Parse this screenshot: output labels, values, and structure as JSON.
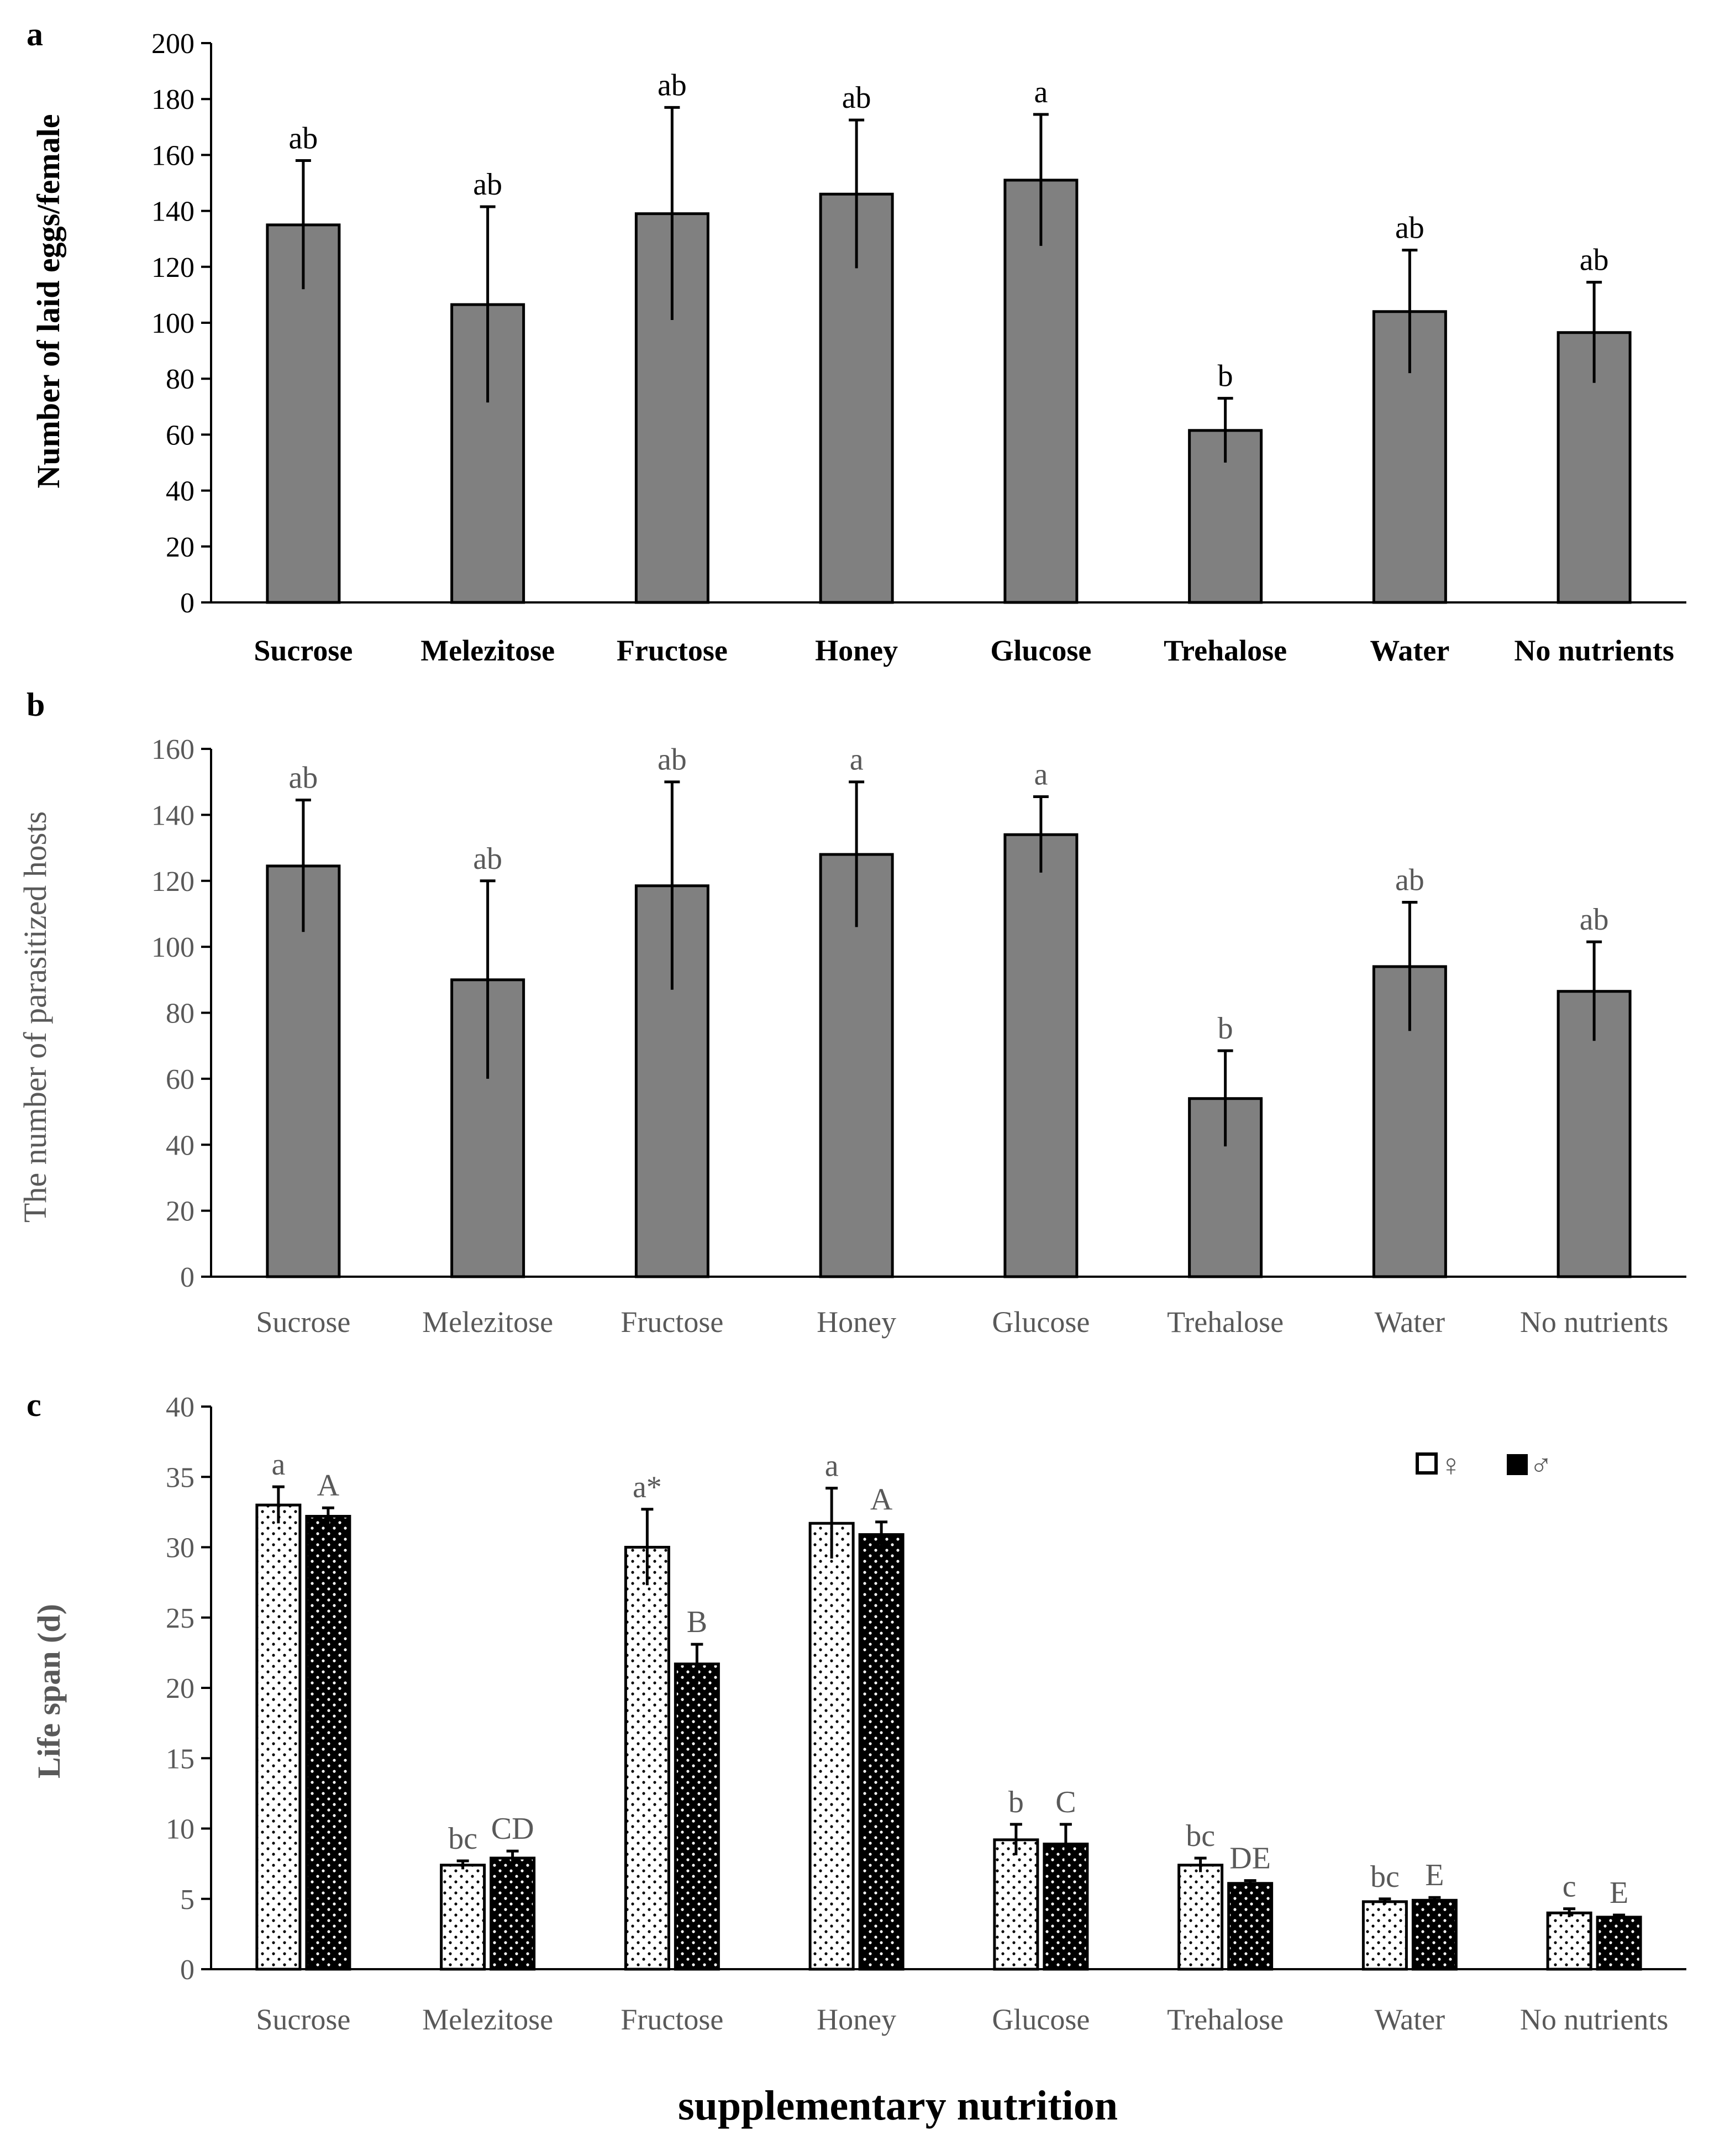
{
  "figure": {
    "xlabel": "supplementary nutrition",
    "colors": {
      "bar_fill": "#808080",
      "axis": "#000000",
      "text_dark": "#000000",
      "text_gray": "#595959",
      "female_fill": "#ffffff",
      "male_fill": "#000000"
    }
  },
  "chart_data": [
    {
      "panel": "a",
      "type": "bar",
      "ylabel": "Number of laid eggs/female",
      "ylim": [
        0,
        200
      ],
      "yticks": [
        0,
        20,
        40,
        60,
        80,
        100,
        120,
        140,
        160,
        180,
        200
      ],
      "categories": [
        "Sucrose",
        "Melezitose",
        "Fructose",
        "Honey",
        "Glucose",
        "Trehalose",
        "Water",
        "No nutrients"
      ],
      "values": [
        135,
        106.5,
        139,
        146,
        151,
        61.5,
        104,
        96.5
      ],
      "errors": [
        23,
        35,
        38,
        26.5,
        23.5,
        11.5,
        22,
        18
      ],
      "letters": [
        "ab",
        "ab",
        "ab",
        "ab",
        "a",
        "b",
        "ab",
        "ab"
      ]
    },
    {
      "panel": "b",
      "type": "bar",
      "ylabel": "The number of parasitized hosts",
      "ylim": [
        0,
        160
      ],
      "yticks": [
        0,
        20,
        40,
        60,
        80,
        100,
        120,
        140,
        160
      ],
      "categories": [
        "Sucrose",
        "Melezitose",
        "Fructose",
        "Honey",
        "Glucose",
        "Trehalose",
        "Water",
        "No nutrients"
      ],
      "values": [
        124.5,
        90,
        118.5,
        128,
        134,
        54,
        94,
        86.5
      ],
      "errors": [
        20,
        30,
        31.5,
        22,
        11.5,
        14.5,
        19.5,
        15
      ],
      "letters": [
        "ab",
        "ab",
        "ab",
        "a",
        "a",
        "b",
        "ab",
        "ab"
      ]
    },
    {
      "panel": "c",
      "type": "bar",
      "ylabel": "Life span (d)",
      "ylim": [
        0,
        40
      ],
      "yticks": [
        0,
        5,
        10,
        15,
        20,
        25,
        30,
        35,
        40
      ],
      "categories": [
        "Sucrose",
        "Melezitose",
        "Fructose",
        "Honey",
        "Glucose",
        "Trehalose",
        "Water",
        "No nutrients"
      ],
      "legend": {
        "position": "top-right",
        "labels": [
          "♀",
          "♂"
        ]
      },
      "series": [
        {
          "name": "♀",
          "values": [
            33,
            7.4,
            30,
            31.7,
            9.2,
            7.4,
            4.8,
            4.0
          ],
          "errors": [
            1.3,
            0.3,
            2.7,
            2.5,
            1.1,
            0.5,
            0.2,
            0.3
          ],
          "letters": [
            "a",
            "bc",
            "a*",
            "a",
            "b",
            "bc",
            "bc",
            "c"
          ]
        },
        {
          "name": "♂",
          "values": [
            32.2,
            7.9,
            21.7,
            30.9,
            8.9,
            6.1,
            4.9,
            3.7
          ],
          "errors": [
            0.6,
            0.5,
            1.4,
            0.9,
            1.4,
            0.2,
            0.2,
            0.15
          ],
          "letters": [
            "A",
            "CD",
            "B",
            "A",
            "C",
            "DE",
            "E",
            "E"
          ]
        }
      ]
    }
  ]
}
